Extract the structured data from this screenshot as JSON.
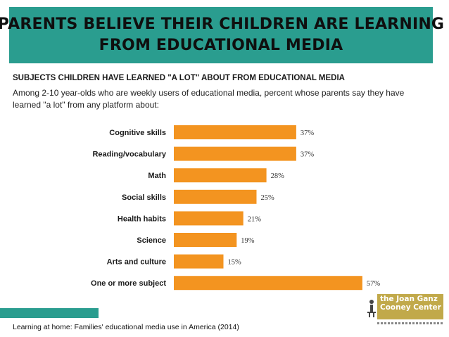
{
  "banner": {
    "line1": "PARENTS BELIEVE THEIR CHILDREN ARE LEARNING",
    "line2": "FROM EDUCATIONAL MEDIA"
  },
  "subtitle": "SUBJECTS CHILDREN HAVE LEARNED \"A LOT\" ABOUT FROM EDUCATIONAL MEDIA",
  "description": "Among 2-10 year-olds who are weekly users of educational media, percent whose parents say they have learned \"a lot\" from any platform about:",
  "footer": "Learning at home: Families' educational media use in America (2014)",
  "logo": {
    "line1": "the Joan Ganz",
    "line2": "Cooney Center"
  },
  "colors": {
    "banner": "#2a9d8f",
    "bar": "#f39420",
    "logo": "#c1a94a"
  },
  "chart_data": {
    "type": "bar",
    "orientation": "horizontal",
    "categories": [
      "Cognitive skills",
      "Reading/vocabulary",
      "Math",
      "Social skills",
      "Health habits",
      "Science",
      "Arts and culture",
      "One or more subject"
    ],
    "values": [
      37,
      37,
      28,
      25,
      21,
      19,
      15,
      57
    ],
    "value_labels": [
      "37%",
      "37%",
      "28%",
      "25%",
      "21%",
      "19%",
      "15%",
      "57%"
    ],
    "xlim": [
      0,
      60
    ],
    "grid": false,
    "legend": "none"
  }
}
